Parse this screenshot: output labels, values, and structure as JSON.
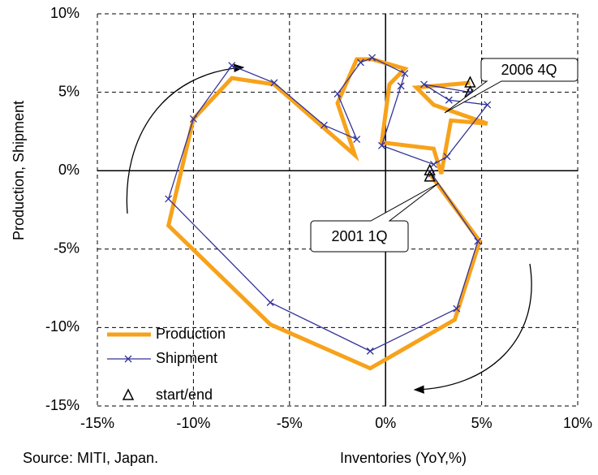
{
  "chart_data": {
    "type": "line",
    "xlabel": "Inventories (YoY,%)",
    "ylabel": "Production, Shipment",
    "source": "Source: MITI, Japan.",
    "xlim": [
      -15,
      10
    ],
    "ylim": [
      -15,
      10
    ],
    "xticks": [
      {
        "value": -15,
        "label": "-15%"
      },
      {
        "value": -10,
        "label": "-10%"
      },
      {
        "value": -5,
        "label": "-5%"
      },
      {
        "value": 0,
        "label": "0%"
      },
      {
        "value": 5,
        "label": "5%"
      },
      {
        "value": 10,
        "label": "10%"
      }
    ],
    "yticks": [
      {
        "value": -15,
        "label": "-15%"
      },
      {
        "value": -10,
        "label": "-10%"
      },
      {
        "value": -5,
        "label": "-5%"
      },
      {
        "value": 0,
        "label": "0%"
      },
      {
        "value": 5,
        "label": "5%"
      },
      {
        "value": 10,
        "label": "10%"
      }
    ],
    "grid": true,
    "legend": "lower left",
    "series": [
      {
        "name": "Production",
        "color": "#F7A21B",
        "marker": "none",
        "x": [
          2.3,
          4.9,
          3.6,
          -0.8,
          -6,
          -11.3,
          -10,
          -8,
          -5.8,
          -1.6,
          -2.5,
          -1.5,
          -0.7,
          1,
          0.2,
          -0.2,
          2.5,
          2.9,
          3.4,
          5.3,
          2.5,
          1.6,
          4.4
        ],
        "values": [
          -0.2,
          -4.5,
          -9.5,
          -12.6,
          -9.8,
          -3.5,
          3.3,
          5.9,
          5.5,
          1.0,
          4.3,
          7.1,
          7.1,
          6.5,
          5.5,
          1.8,
          1.4,
          -0.2,
          3.2,
          3.0,
          4.2,
          5.3,
          5.6
        ]
      },
      {
        "name": "Shipment",
        "color": "#33339A",
        "marker": "x",
        "x": [
          2.4,
          4.8,
          3.7,
          -0.8,
          -6,
          -11.3,
          -10,
          -8,
          -5.8,
          -3.2,
          -1.5,
          -2.5,
          -1.3,
          -0.7,
          1,
          0.8,
          -0.2,
          2.5,
          3.2,
          5.3,
          3.3,
          2,
          4.4
        ],
        "values": [
          -0.2,
          -4.5,
          -8.8,
          -11.5,
          -8.4,
          -1.8,
          3.3,
          6.7,
          5.6,
          2.9,
          2.0,
          4.9,
          6.9,
          7.2,
          6.2,
          5.4,
          1.6,
          0.4,
          0.9,
          4.2,
          4.5,
          5.5,
          5.0
        ]
      },
      {
        "name": "start/end",
        "color": "#000000",
        "marker": "triangle",
        "x": [
          2.3,
          2.3,
          4.4,
          4.4
        ],
        "values": [
          -0.4,
          0.0,
          5.6,
          5.0
        ]
      }
    ],
    "annotations": [
      {
        "text": "2006 4Q"
      },
      {
        "text": "2001 1Q"
      }
    ]
  }
}
